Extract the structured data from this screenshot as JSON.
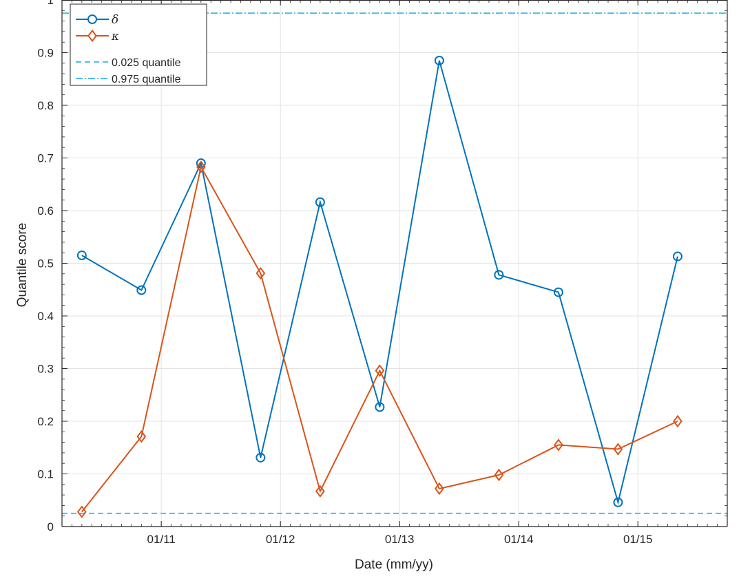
{
  "chart_data": {
    "type": "line",
    "title": "",
    "xlabel": "Date (mm/yy)",
    "ylabel": "Quantile score",
    "x_tick_labels": [
      "01/11",
      "01/12",
      "01/13",
      "01/14",
      "01/15"
    ],
    "x_tick_values": [
      "2011-01",
      "2012-01",
      "2013-01",
      "2014-01",
      "2015-01"
    ],
    "y_tick_labels": [
      "0",
      "0.1",
      "0.2",
      "0.3",
      "0.4",
      "0.5",
      "0.6",
      "0.7",
      "0.8",
      "0.9",
      "1"
    ],
    "ylim": [
      0,
      1
    ],
    "xlim": [
      "2010-03",
      "2015-10"
    ],
    "x": [
      "2010-05",
      "2010-11",
      "2011-05",
      "2011-11",
      "2012-05",
      "2012-11",
      "2013-05",
      "2013-11",
      "2014-05",
      "2014-11",
      "2015-05"
    ],
    "series": [
      {
        "name": "δ",
        "color": "#0072BD",
        "marker": "circle",
        "values": [
          0.515,
          0.449,
          0.69,
          0.131,
          0.616,
          0.227,
          0.885,
          0.478,
          0.445,
          0.046,
          0.513
        ]
      },
      {
        "name": "κ",
        "color": "#D95319",
        "marker": "diamond",
        "values": [
          0.028,
          0.171,
          0.683,
          0.481,
          0.067,
          0.296,
          0.072,
          0.098,
          0.155,
          0.147,
          0.2
        ]
      }
    ],
    "reference_lines": [
      {
        "name": "0.025 quantile",
        "value": 0.025,
        "color": "#4DBEEE",
        "style": "dashed"
      },
      {
        "name": "0.975 quantile",
        "value": 0.975,
        "color": "#4DBEEE",
        "style": "dashdot"
      }
    ],
    "grid": true,
    "legend_position": "top-left"
  }
}
